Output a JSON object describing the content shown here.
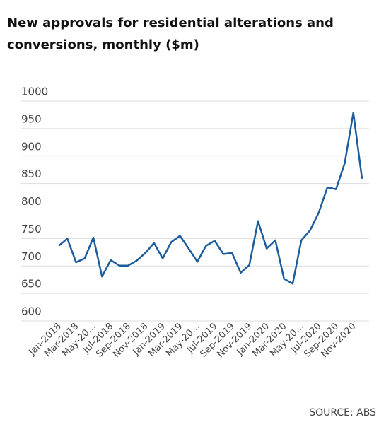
{
  "chart_data": {
    "type": "line",
    "title": [
      "New approvals for residential alterations and",
      "conversions, monthly ($m)"
    ],
    "source": "SOURCE: ABS",
    "categories": [
      "Jan-2018",
      null,
      "Mar-2018",
      null,
      "May-20…",
      null,
      "Jul-2018",
      null,
      "Sep-2018",
      null,
      "Nov-2018",
      null,
      "Jan-2019",
      null,
      "Mar-2019",
      null,
      "May-20…",
      null,
      "Jul-2019",
      null,
      "Sep-2019",
      null,
      "Nov-2019",
      null,
      "Jan-2020",
      null,
      "Mar-2020",
      null,
      "May-20…",
      null,
      "Jul-2020",
      null,
      "Sep-2020",
      null,
      "Nov-2020",
      null
    ],
    "series": [
      {
        "name": "Approvals",
        "color": "#1c5c9c",
        "values": [
          720,
          733,
          690,
          697,
          735,
          664,
          694,
          684,
          684,
          693,
          707,
          725,
          697,
          727,
          738,
          715,
          691,
          720,
          729,
          705,
          707,
          671,
          685,
          765,
          715,
          730,
          660,
          651,
          730,
          748,
          780,
          826,
          823,
          870,
          962,
          842
        ]
      }
    ],
    "ylim": [
      600,
      1000
    ],
    "yticks": [
      600,
      650,
      700,
      750,
      800,
      850,
      900,
      950,
      1000
    ],
    "grid": true
  }
}
